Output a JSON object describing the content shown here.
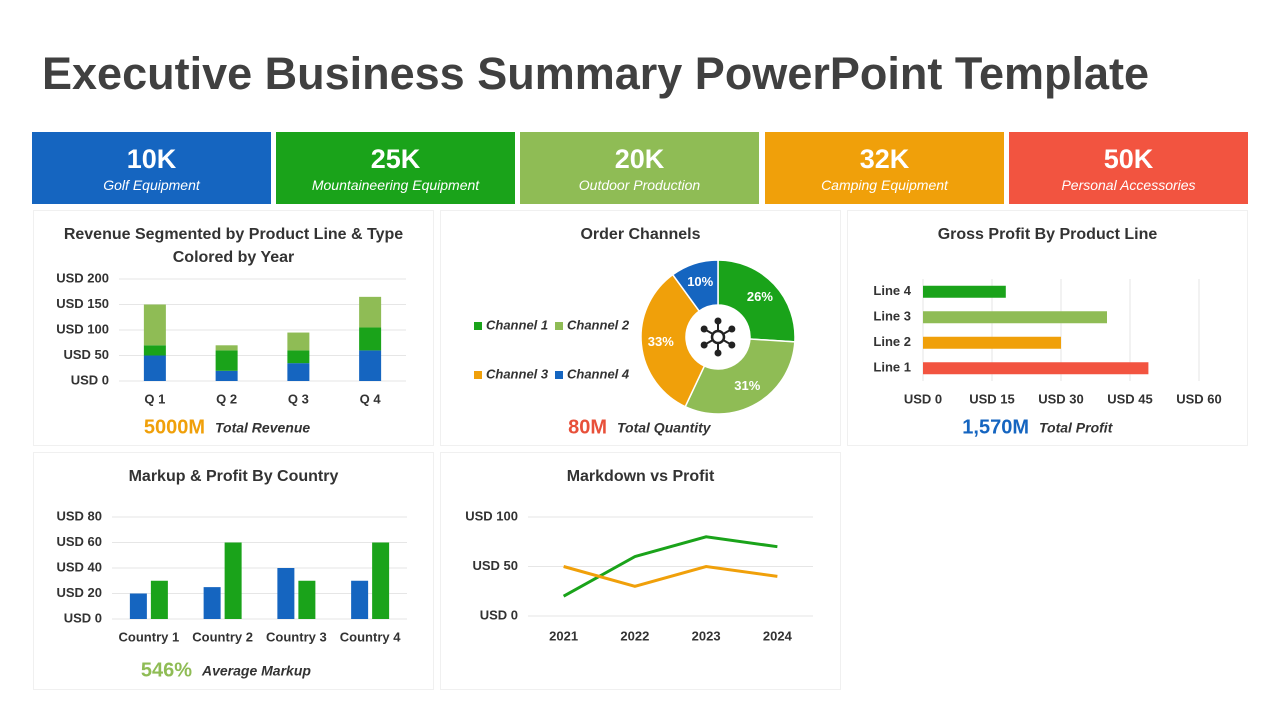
{
  "title": "Executive Business Summary PowerPoint Template",
  "kpis": [
    {
      "value": "10K",
      "label": "Golf Equipment",
      "color": "#1565c0"
    },
    {
      "value": "25K",
      "label": "Mountaineering Equipment",
      "color": "#1aa31a"
    },
    {
      "value": "20K",
      "label": "Outdoor Production",
      "color": "#8fbc55"
    },
    {
      "value": "32K",
      "label": "Camping Equipment",
      "color": "#f0a00a"
    },
    {
      "value": "50K",
      "label": "Personal Accessories",
      "color": "#f25440"
    }
  ],
  "chart_data": [
    {
      "type": "bar",
      "stacked": true,
      "title": "Revenue Segmented by Product Line & Type Colored by Year",
      "categories": [
        "Q 1",
        "Q 2",
        "Q 3",
        "Q 4"
      ],
      "series": [
        {
          "color": "#1565c0",
          "values": [
            50,
            20,
            35,
            60
          ]
        },
        {
          "color": "#1aa31a",
          "values": [
            20,
            40,
            25,
            45
          ]
        },
        {
          "color": "#8fbc55",
          "values": [
            80,
            10,
            35,
            60
          ]
        }
      ],
      "ylim": [
        0,
        200
      ],
      "yticks": [
        {
          "value": 0,
          "label": "USD 0"
        },
        {
          "value": 50,
          "label": "USD 50"
        },
        {
          "value": 100,
          "label": "USD 100"
        },
        {
          "value": 150,
          "label": "USD 150"
        },
        {
          "value": 200,
          "label": "USD 200"
        }
      ],
      "grid": true,
      "summary": {
        "value": "5000M",
        "label": "Total Revenue",
        "color": "#f0a00a"
      }
    },
    {
      "type": "pie",
      "donut": true,
      "title": "Order Channels",
      "categories": [
        "Channel 1",
        "Channel 2",
        "Channel 3",
        "Channel 4"
      ],
      "values": [
        26,
        31,
        33,
        10
      ],
      "value_labels": [
        "26%",
        "31%",
        "33%",
        "10%"
      ],
      "colors": [
        "#1aa31a",
        "#8fbc55",
        "#f0a00a",
        "#1565c0"
      ],
      "legend": "left",
      "summary": {
        "value": "80M",
        "label": "Total Quantity",
        "color": "#e8503a"
      }
    },
    {
      "type": "bar",
      "orientation": "horizontal",
      "title": "Gross Profit By Product Line",
      "categories": [
        "Line 1",
        "Line 2",
        "Line 3",
        "Line 4"
      ],
      "values": [
        49,
        30,
        40,
        18
      ],
      "colors": [
        "#f25440",
        "#f0a00a",
        "#8fbc55",
        "#1aa31a"
      ],
      "xlim": [
        0,
        60
      ],
      "xticks": [
        {
          "value": 0,
          "label": "USD 0"
        },
        {
          "value": 15,
          "label": "USD 15"
        },
        {
          "value": 30,
          "label": "USD 30"
        },
        {
          "value": 45,
          "label": "USD 45"
        },
        {
          "value": 60,
          "label": "USD 60"
        }
      ],
      "grid": true,
      "summary": {
        "value": "1,570M",
        "label": "Total Profit",
        "color": "#1565c0"
      }
    },
    {
      "type": "bar",
      "title": "Markup & Profit By Country",
      "categories": [
        "Country 1",
        "Country 2",
        "Country 3",
        "Country 4"
      ],
      "series": [
        {
          "color": "#1565c0",
          "values": [
            20,
            25,
            40,
            30
          ]
        },
        {
          "color": "#1aa31a",
          "values": [
            30,
            60,
            30,
            60
          ]
        }
      ],
      "ylim": [
        0,
        80
      ],
      "yticks": [
        {
          "value": 0,
          "label": "USD 0"
        },
        {
          "value": 20,
          "label": "USD 20"
        },
        {
          "value": 40,
          "label": "USD 40"
        },
        {
          "value": 60,
          "label": "USD 60"
        },
        {
          "value": 80,
          "label": "USD 80"
        }
      ],
      "grid": true,
      "summary": {
        "value": "546%",
        "label": "Average Markup",
        "color": "#8fbc55"
      }
    },
    {
      "type": "line",
      "title": "Markdown vs Profit",
      "categories": [
        "2021",
        "2022",
        "2023",
        "2024"
      ],
      "series": [
        {
          "color": "#1aa31a",
          "values": [
            20,
            60,
            80,
            70
          ]
        },
        {
          "color": "#f0a00a",
          "values": [
            50,
            30,
            50,
            40
          ]
        }
      ],
      "ylim": [
        0,
        100
      ],
      "yticks": [
        {
          "value": 0,
          "label": "USD 0"
        },
        {
          "value": 50,
          "label": "USD 50"
        },
        {
          "value": 100,
          "label": "USD 100"
        }
      ],
      "grid": true
    }
  ]
}
